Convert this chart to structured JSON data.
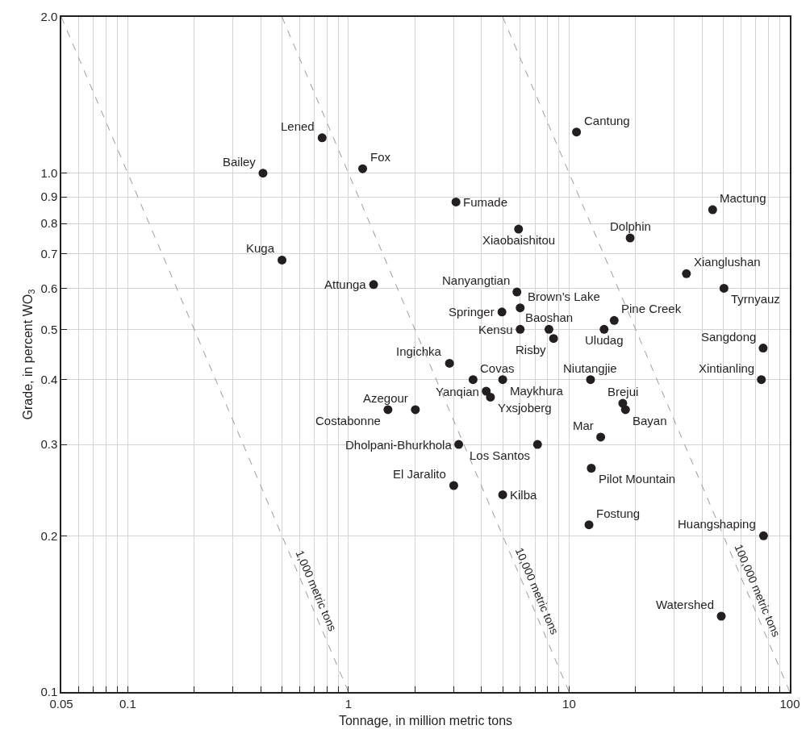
{
  "chart_data": {
    "type": "scatter",
    "xlabel": "Tonnage, in million metric tons",
    "ylabel": "Grade, in percent WO$_{3}$",
    "log": "xy",
    "grid": true,
    "xlim": [
      0.05,
      100
    ],
    "ylim": [
      0.1,
      2.0
    ],
    "xticks": [
      0.05,
      {
        "value": 0.06,
        "label": null
      },
      {
        "value": 0.07,
        "label": null
      },
      {
        "value": 0.08,
        "label": null
      },
      {
        "value": 0.09,
        "label": null
      },
      0.1,
      {
        "value": 0.2,
        "label": null
      },
      {
        "value": 0.3,
        "label": null
      },
      {
        "value": 0.4,
        "label": null
      },
      {
        "value": 0.5,
        "label": null
      },
      {
        "value": 0.6,
        "label": null
      },
      {
        "value": 0.7,
        "label": null
      },
      {
        "value": 0.8,
        "label": null
      },
      {
        "value": 0.9,
        "label": null
      },
      1,
      {
        "value": 2,
        "label": null
      },
      {
        "value": 3,
        "label": null
      },
      {
        "value": 4,
        "label": null
      },
      {
        "value": 5,
        "label": null
      },
      {
        "value": 6,
        "label": null
      },
      {
        "value": 7,
        "label": null
      },
      {
        "value": 8,
        "label": null
      },
      {
        "value": 9,
        "label": null
      },
      10,
      {
        "value": 20,
        "label": null
      },
      {
        "value": 30,
        "label": null
      },
      {
        "value": 40,
        "label": null
      },
      {
        "value": 50,
        "label": null
      },
      {
        "value": 60,
        "label": null
      },
      {
        "value": 70,
        "label": null
      },
      {
        "value": 80,
        "label": null
      },
      {
        "value": 90,
        "label": null
      },
      100
    ],
    "yticks": [
      0.1,
      0.2,
      0.3,
      0.4,
      0.5,
      0.6,
      0.7,
      0.8,
      0.9,
      {
        "value": 1.0,
        "label": "1.0"
      },
      {
        "value": 2.0,
        "label": "2.0"
      }
    ],
    "series": [
      {
        "marker": "circle",
        "color": "#231f20",
        "x": [
          0.76,
          0.41,
          1.16,
          0.5,
          1.3,
          10.8,
          3.07,
          5.9,
          44.7,
          18.9,
          34,
          50.3,
          5.8,
          6.0,
          4.96,
          6.0,
          8.1,
          8.5,
          14.4,
          16.0,
          75.7,
          2.87,
          3.67,
          5.0,
          4.21,
          4.4,
          12.5,
          74.3,
          17.5,
          18.0,
          1.51,
          2.01,
          3.16,
          7.19,
          13.9,
          12.6,
          3.0,
          5.0,
          12.3,
          76,
          48.9
        ],
        "values": [
          1.17,
          1.0,
          1.02,
          0.68,
          0.61,
          1.2,
          0.88,
          0.78,
          0.85,
          0.75,
          0.64,
          0.6,
          0.59,
          0.55,
          0.54,
          0.5,
          0.5,
          0.48,
          0.5,
          0.52,
          0.46,
          0.43,
          0.4,
          0.4,
          0.38,
          0.37,
          0.4,
          0.4,
          0.36,
          0.35,
          0.35,
          0.35,
          0.3,
          0.3,
          0.31,
          0.27,
          0.25,
          0.24,
          0.21,
          0.2,
          0.14
        ]
      },
      {
        "type": "line",
        "name": "1,000 metric tons",
        "color": "#999999",
        "line_style": "dashed",
        "x": [
          0.05,
          1
        ],
        "values": [
          2.0,
          0.1
        ]
      },
      {
        "type": "line",
        "name": "10,000 metric tons",
        "color": "#999999",
        "line_style": "dashed",
        "x": [
          0.5,
          10
        ],
        "values": [
          2.0,
          0.1
        ]
      },
      {
        "type": "line",
        "name": "100,000 metric tons",
        "color": "#999999",
        "line_style": "dashed",
        "x": [
          5,
          100
        ],
        "values": [
          2.0,
          0.1
        ]
      }
    ],
    "annotations": [
      {
        "text": "Lened",
        "x": 0.76,
        "y": 1.17
      },
      {
        "text": "Bailey",
        "x": 0.41,
        "y": 1.0
      },
      {
        "text": "Fox",
        "x": 1.16,
        "y": 1.02
      },
      {
        "text": "Kuga",
        "x": 0.5,
        "y": 0.68
      },
      {
        "text": "Attunga",
        "x": 1.3,
        "y": 0.61
      },
      {
        "text": "Cantung",
        "x": 10.8,
        "y": 1.2
      },
      {
        "text": "Fumade",
        "x": 3.07,
        "y": 0.88
      },
      {
        "text": "Xiaobaishitou",
        "x": 5.9,
        "y": 0.78
      },
      {
        "text": "Mactung",
        "x": 44.7,
        "y": 0.85
      },
      {
        "text": "Dolphin",
        "x": 18.9,
        "y": 0.75
      },
      {
        "text": "Xianglushan",
        "x": 34,
        "y": 0.64
      },
      {
        "text": "Tyrnyauz",
        "x": 50.3,
        "y": 0.6
      },
      {
        "text": "Nanyangtian",
        "x": 5.8,
        "y": 0.59
      },
      {
        "text": "Brown’s Lake",
        "x": 6.0,
        "y": 0.55
      },
      {
        "text": "Springer",
        "x": 4.96,
        "y": 0.54
      },
      {
        "text": "Kensu",
        "x": 6.0,
        "y": 0.5
      },
      {
        "text": "Baoshan",
        "x": 8.1,
        "y": 0.5
      },
      {
        "text": "Risby",
        "x": 8.5,
        "y": 0.48
      },
      {
        "text": "Uludag",
        "x": 14.4,
        "y": 0.5
      },
      {
        "text": "Pine Creek",
        "x": 16.0,
        "y": 0.52
      },
      {
        "text": "Sangdong",
        "x": 75.7,
        "y": 0.46
      },
      {
        "text": "Ingichka",
        "x": 2.87,
        "y": 0.43
      },
      {
        "text": "Covas",
        "x": 3.67,
        "y": 0.4
      },
      {
        "text": "Maykhura",
        "x": 5.0,
        "y": 0.4
      },
      {
        "text": "Yanqian",
        "x": 4.21,
        "y": 0.38
      },
      {
        "text": "Yxsjoberg",
        "x": 4.4,
        "y": 0.37
      },
      {
        "text": "Niutangjie",
        "x": 12.5,
        "y": 0.4
      },
      {
        "text": "Xintianling",
        "x": 74.3,
        "y": 0.4
      },
      {
        "text": "Brejui",
        "x": 17.5,
        "y": 0.36
      },
      {
        "text": "Bayan",
        "x": 18.0,
        "y": 0.35
      },
      {
        "text": "Costabonne",
        "x": 1.51,
        "y": 0.35
      },
      {
        "text": "Azegour",
        "x": 2.01,
        "y": 0.35
      },
      {
        "text": "Dholpani-Bhurkhola",
        "x": 3.16,
        "y": 0.3
      },
      {
        "text": "Los Santos",
        "x": 7.19,
        "y": 0.3
      },
      {
        "text": "Mar",
        "x": 13.9,
        "y": 0.31
      },
      {
        "text": "Pilot Mountain",
        "x": 12.6,
        "y": 0.27
      },
      {
        "text": "El Jaralito",
        "x": 3.0,
        "y": 0.25
      },
      {
        "text": "Kilba",
        "x": 5.0,
        "y": 0.24
      },
      {
        "text": "Fostung",
        "x": 12.3,
        "y": 0.21
      },
      {
        "text": "Huangshaping",
        "x": 76,
        "y": 0.2
      },
      {
        "text": "Watershed",
        "x": 48.9,
        "y": 0.14
      }
    ]
  }
}
